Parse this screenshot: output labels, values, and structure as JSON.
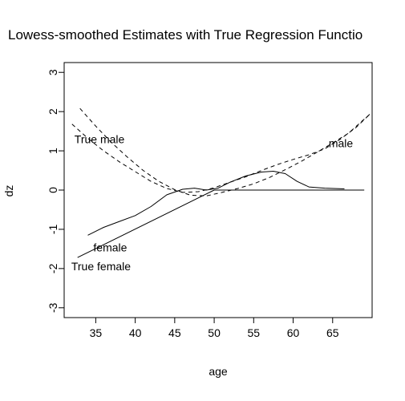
{
  "chart_data": {
    "type": "line",
    "title": "Lowess-smoothed Estimates with True Regression Functio",
    "xlabel": "age",
    "ylabel": "dz",
    "xlim": [
      31,
      70
    ],
    "ylim": [
      -3.25,
      3.25
    ],
    "xticks": [
      35,
      40,
      45,
      50,
      55,
      60,
      65
    ],
    "yticks": [
      -3,
      -2,
      -1,
      0,
      1,
      2,
      3
    ],
    "grid": false,
    "series": [
      {
        "style": "solid",
        "x": [
          32.7,
          50.0,
          69.0
        ],
        "y": [
          -1.72,
          0.0,
          0.0
        ]
      },
      {
        "style": "solid",
        "x": [
          34.0,
          36.0,
          38.0,
          40.0,
          42.0,
          44.0,
          46.0,
          47.5,
          49.0,
          50.5,
          52.0,
          54.0,
          56.0,
          57.5,
          59.0,
          60.5,
          62.0,
          64.0,
          66.5
        ],
        "y": [
          -1.15,
          -0.95,
          -0.8,
          -0.65,
          -0.42,
          -0.12,
          0.02,
          0.05,
          0.0,
          0.05,
          0.2,
          0.36,
          0.46,
          0.48,
          0.42,
          0.22,
          0.08,
          0.05,
          0.03
        ]
      },
      {
        "style": "dashed",
        "x": [
          32.0,
          34.0,
          36.0,
          38.0,
          40.0,
          42.0,
          44.0,
          46.0,
          48.0,
          50.0,
          52.0,
          54.0,
          56.0,
          58.0,
          60.0,
          62.0,
          64.0,
          66.0,
          68.0,
          69.8
        ],
        "y": [
          1.68,
          1.32,
          1.0,
          0.72,
          0.47,
          0.22,
          0.04,
          -0.06,
          -0.04,
          0.06,
          0.2,
          0.34,
          0.5,
          0.65,
          0.78,
          0.9,
          1.05,
          1.3,
          1.6,
          1.95
        ]
      },
      {
        "style": "dashed",
        "x": [
          33.0,
          35.0,
          37.0,
          39.0,
          41.0,
          43.0,
          45.0,
          47.0,
          49.0,
          51.0,
          53.0,
          55.0,
          57.0,
          59.0,
          61.0,
          63.0,
          65.0,
          67.0,
          69.8
        ],
        "y": [
          2.08,
          1.63,
          1.21,
          0.84,
          0.5,
          0.22,
          0.01,
          -0.13,
          -0.15,
          -0.06,
          0.04,
          0.16,
          0.32,
          0.52,
          0.73,
          0.96,
          1.2,
          1.45,
          1.95
        ]
      }
    ],
    "annotations": [
      {
        "text": "True male",
        "x": 32.3,
        "y": 1.3
      },
      {
        "text": "male",
        "x": 64.5,
        "y": 1.2
      },
      {
        "text": "female",
        "x": 34.7,
        "y": -1.46
      },
      {
        "text": "True female",
        "x": 31.9,
        "y": -1.94
      }
    ]
  }
}
